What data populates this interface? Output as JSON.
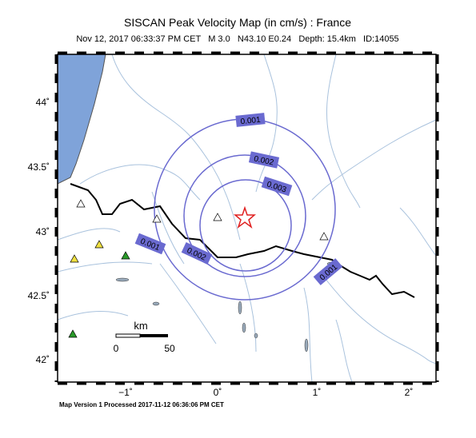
{
  "header": {
    "title": "SISCAN Peak Velocity Map (in cm/s) : France",
    "subtitle": "Nov 12, 2017 06:33:37 PM CET   M 3.0   N43.10 E0.24   Depth: 15.4km   ID:14055"
  },
  "axes": {
    "lat_labels": [
      "44˚",
      "43.5˚",
      "43˚",
      "42.5˚",
      "42˚"
    ],
    "lon_labels": [
      "−1˚",
      "0˚",
      "1˚",
      "2˚"
    ]
  },
  "contours": [
    "0.001",
    "0.002",
    "0.003",
    "0.001",
    "0.002",
    "0.001"
  ],
  "scale": {
    "unit": "km",
    "start": "0",
    "end": "50"
  },
  "footer": "Map Version 1 Processed 2017-11-12 06:36:06 PM CET"
}
